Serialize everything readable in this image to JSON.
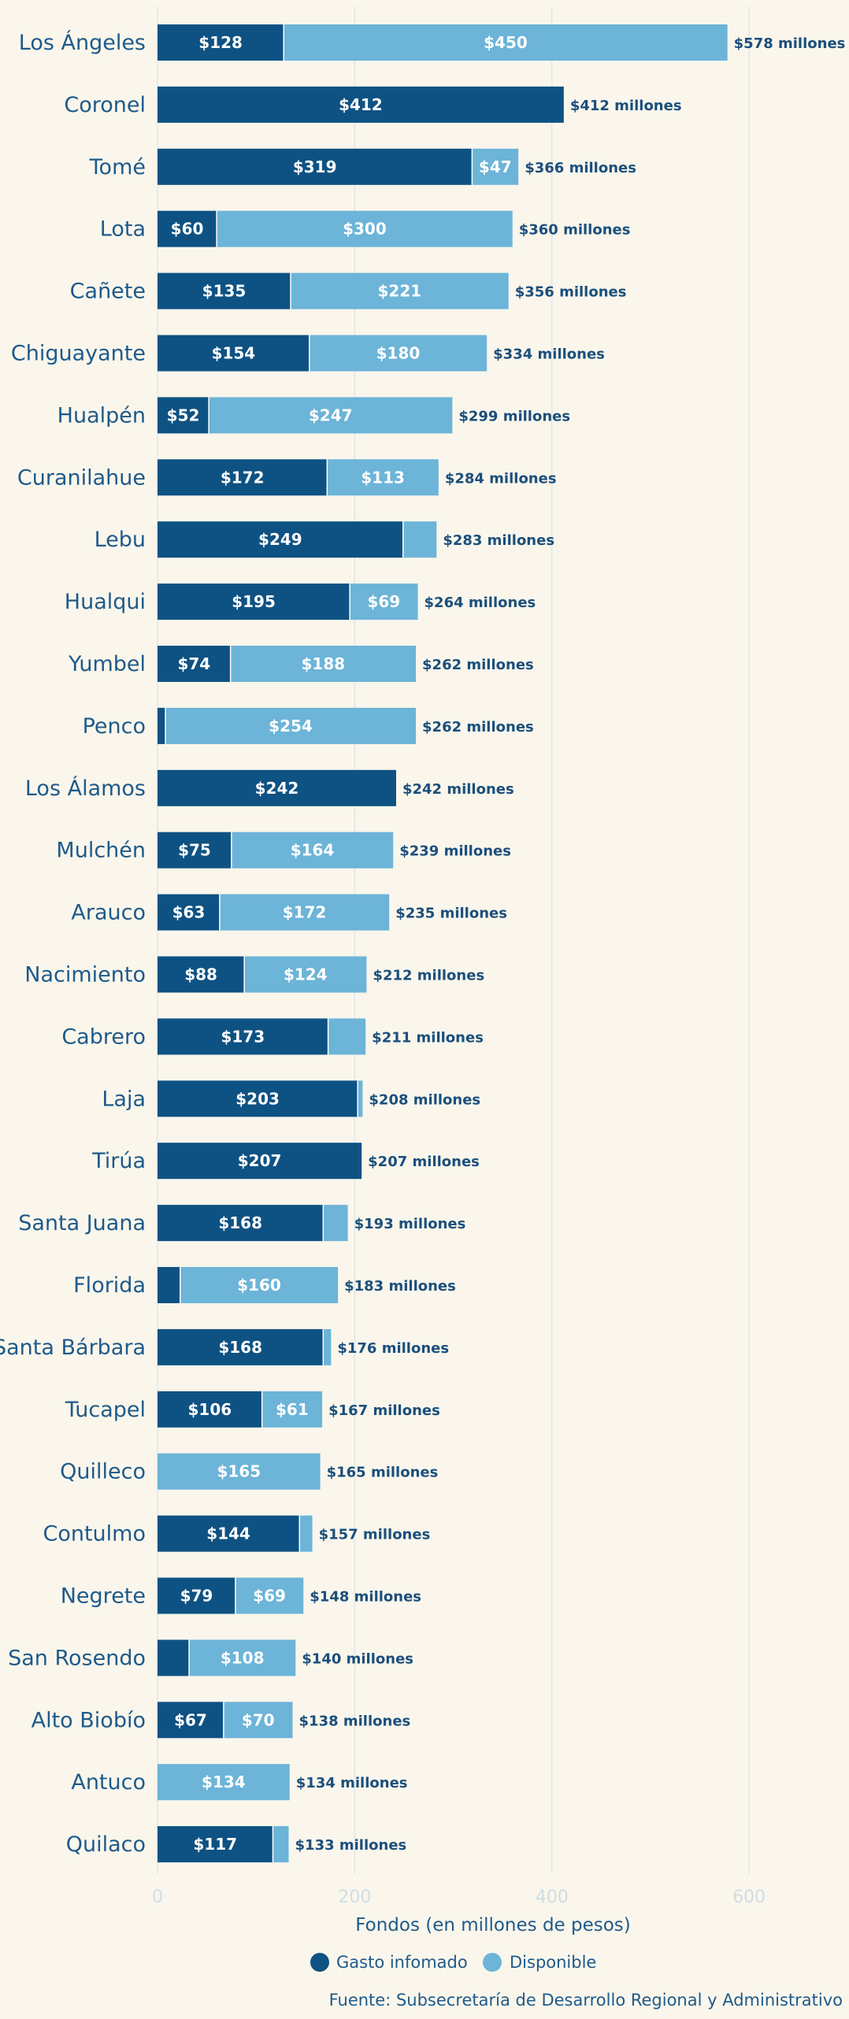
{
  "chart_data": {
    "type": "bar",
    "orientation": "horizontal",
    "stacked": true,
    "xlabel": "Fondos (en millones de pesos)",
    "xlim": [
      0,
      700
    ],
    "xticks": [
      0,
      200,
      400,
      600
    ],
    "grid": true,
    "legend_position": "bottom",
    "total_suffix": "millones",
    "value_prefix": "$",
    "source": "Fuente: Subsecretaría de Desarrollo Regional y Administrativo",
    "colors": {
      "Gasto infomado": "#0e5283",
      "Disponible": "#6cb4d8"
    },
    "categories": [
      "Los Ángeles",
      "Coronel",
      "Tomé",
      "Lota",
      "Cañete",
      "Chiguayante",
      "Hualpén",
      "Curanilahue",
      "Lebu",
      "Hualqui",
      "Yumbel",
      "Penco",
      "Los Álamos",
      "Mulchén",
      "Arauco",
      "Nacimiento",
      "Cabrero",
      "Laja",
      "Tirúa",
      "Santa Juana",
      "Florida",
      "Santa Bárbara",
      "Tucapel",
      "Quilleco",
      "Contulmo",
      "Negrete",
      "San Rosendo",
      "Alto Biobío",
      "Antuco",
      "Quilaco"
    ],
    "series": [
      {
        "name": "Gasto infomado",
        "values": [
          128,
          412,
          319,
          60,
          135,
          154,
          52,
          172,
          249,
          195,
          74,
          8,
          242,
          75,
          63,
          88,
          173,
          203,
          207,
          168,
          23,
          168,
          106,
          0,
          144,
          79,
          32,
          67,
          0,
          117
        ],
        "labeled": [
          true,
          true,
          true,
          true,
          true,
          true,
          true,
          true,
          true,
          true,
          true,
          false,
          true,
          true,
          true,
          true,
          true,
          true,
          true,
          true,
          false,
          true,
          true,
          false,
          true,
          true,
          false,
          true,
          false,
          true
        ]
      },
      {
        "name": "Disponible",
        "values": [
          450,
          0,
          47,
          300,
          221,
          180,
          247,
          113,
          34,
          69,
          188,
          254,
          0,
          164,
          172,
          124,
          38,
          5,
          0,
          25,
          160,
          8,
          61,
          165,
          13,
          69,
          108,
          70,
          134,
          16
        ],
        "labeled": [
          true,
          false,
          true,
          true,
          true,
          true,
          true,
          true,
          false,
          true,
          true,
          true,
          false,
          true,
          true,
          true,
          false,
          false,
          false,
          false,
          true,
          false,
          true,
          true,
          false,
          true,
          true,
          true,
          true,
          false
        ]
      }
    ],
    "totals": [
      578,
      412,
      366,
      360,
      356,
      334,
      299,
      284,
      283,
      264,
      262,
      262,
      242,
      239,
      235,
      212,
      211,
      208,
      207,
      193,
      183,
      176,
      167,
      165,
      157,
      148,
      140,
      138,
      134,
      133
    ]
  }
}
